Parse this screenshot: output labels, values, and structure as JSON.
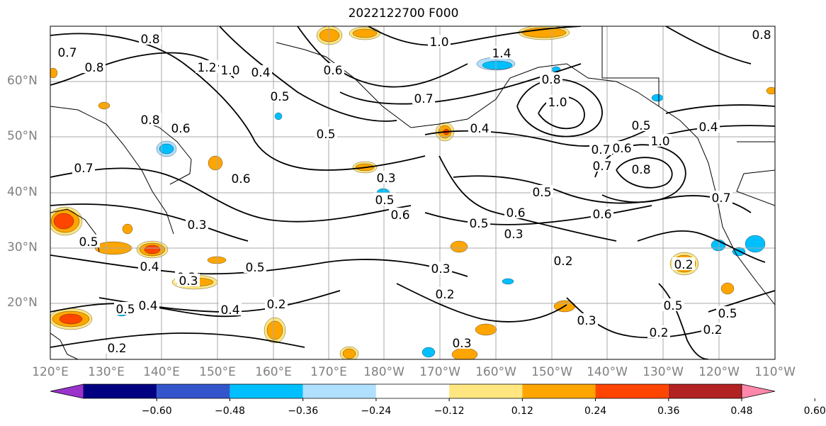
{
  "title": "2022122700 F000",
  "latitude_labels": [
    "60°N",
    "50°N",
    "40°N",
    "30°N",
    "20°N"
  ],
  "longitude_labels": [
    "120°E",
    "130°E",
    "140°E",
    "150°E",
    "160°E",
    "170°E",
    "180°W",
    "170°W",
    "160°W",
    "150°W",
    "140°W",
    "130°W",
    "120°W",
    "110°W"
  ],
  "contour_labels": [
    "0.8",
    "0.7",
    "0.8",
    "1.2",
    "1.0",
    "0.4",
    "0.5",
    "0.6",
    "1.0",
    "1.4",
    "0.8",
    "0.7",
    "1.0",
    "0.8",
    "0.6",
    "0.5",
    "0.4",
    "0.5",
    "0.4",
    "0.8",
    "0.7",
    "0.6",
    "1.0",
    "0.8",
    "0.3",
    "0.5",
    "0.6",
    "0.7",
    "0.5",
    "0.6",
    "0.5",
    "0.3",
    "0.6",
    "0.3",
    "0.5",
    "0.3",
    "0.4",
    "0.5",
    "0.3",
    "0.2",
    "0.3",
    "0.2",
    "0.2",
    "0.3",
    "0.2",
    "0.4",
    "0.2",
    "0.5",
    "0.3",
    "0.5",
    "0.4",
    "0.2",
    "0.2",
    "0.7",
    "0.5",
    "0.6",
    "0.7"
  ],
  "colorbar": {
    "tick_labels": [
      "−0.60",
      "−0.48",
      "−0.36",
      "−0.24",
      "−0.12",
      "0.12",
      "0.24",
      "0.36",
      "0.48",
      "0.60"
    ],
    "colors": [
      "#9933cc",
      "#000080",
      "#3355cc",
      "#00bfff",
      "#b0e0ff",
      "#ffffff",
      "#ffe680",
      "#ffa500",
      "#ff4500",
      "#b22222",
      "#ff88aa"
    ]
  },
  "map_colors": {
    "positive_light": "#ffe680",
    "positive_mid": "#ffa500",
    "positive_strong": "#ff4500",
    "positive_max": "#b22222",
    "negative_light": "#b0e0ff",
    "negative_mid": "#00bfff",
    "negative_strong": "#3355cc",
    "contour": "#000000",
    "grid": "#aaaaaa",
    "coastline": "#000000"
  }
}
